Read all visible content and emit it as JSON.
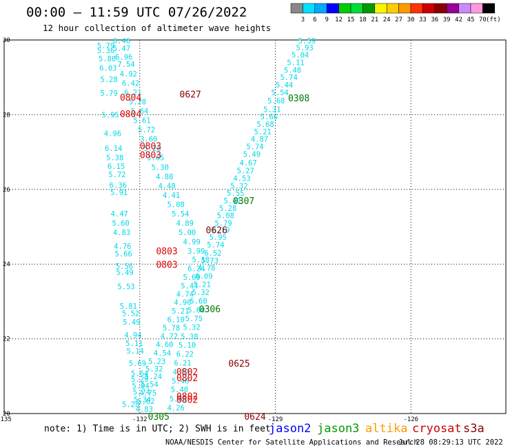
{
  "header": {
    "time_title": "00:00 – 11:59 UTC 07/26/2022",
    "subtitle": "12 hour collection of altimeter wave heights"
  },
  "colorbar": {
    "labels": [
      "3",
      "6",
      "9",
      "12",
      "15",
      "18",
      "21",
      "24",
      "27",
      "30",
      "33",
      "36",
      "39",
      "42",
      "45",
      "70"
    ],
    "unit": "(ft)",
    "colors": [
      "#888888",
      "#00e0ff",
      "#00a8ff",
      "#0000ff",
      "#00cc00",
      "#00dd33",
      "#009900",
      "#f6f600",
      "#ffcc00",
      "#ff9900",
      "#ff3300",
      "#cc0000",
      "#880000",
      "#990099",
      "#cc88ff",
      "#ff99dd",
      "#000000"
    ]
  },
  "note": "note: 1) Time is in UTC; 2) SWH is in feet",
  "satellites": [
    {
      "name": "jason2",
      "color": "#0000ff"
    },
    {
      "name": "jason3",
      "color": "#009900"
    },
    {
      "name": "altika",
      "color": "#ff9900"
    },
    {
      "name": "cryosat",
      "color": "#cc0000"
    },
    {
      "name": "s3a",
      "color": "#880000"
    }
  ],
  "credit": "NOAA/NESDIS Center for Satellite Applications and Research",
  "generated": "Jul 28 08:29:13 UTC 2022",
  "chart_data": {
    "type": "scatter",
    "x_ticks": [
      "-135",
      "-132",
      "-129",
      "-126",
      "-123",
      "-120"
    ],
    "y_ticks": [
      "20",
      "22",
      "24",
      "26",
      "28",
      "30"
    ],
    "xlim": [
      -135,
      -123.9
    ],
    "ylim": [
      20,
      30
    ],
    "grid": true,
    "value_color": "#00d8e8",
    "wave_heights": [
      {
        "lon": -128.3,
        "lat": 29.98,
        "v": "5.59"
      },
      {
        "lon": -128.35,
        "lat": 29.8,
        "v": "5.93"
      },
      {
        "lon": -128.45,
        "lat": 29.6,
        "v": "5.04"
      },
      {
        "lon": -128.55,
        "lat": 29.4,
        "v": "5.11"
      },
      {
        "lon": -128.62,
        "lat": 29.2,
        "v": "5.48"
      },
      {
        "lon": -128.7,
        "lat": 29.0,
        "v": "5.74"
      },
      {
        "lon": -128.8,
        "lat": 28.8,
        "v": "5.44"
      },
      {
        "lon": -128.9,
        "lat": 28.6,
        "v": "5.54"
      },
      {
        "lon": -128.98,
        "lat": 28.38,
        "v": "5.68"
      },
      {
        "lon": -129.07,
        "lat": 28.15,
        "v": "5.31"
      },
      {
        "lon": -129.14,
        "lat": 27.95,
        "v": "5.66"
      },
      {
        "lon": -129.22,
        "lat": 27.75,
        "v": "5.68"
      },
      {
        "lon": -129.28,
        "lat": 27.55,
        "v": "5.21"
      },
      {
        "lon": -129.35,
        "lat": 27.35,
        "v": "4.87"
      },
      {
        "lon": -129.45,
        "lat": 27.15,
        "v": "5.74"
      },
      {
        "lon": -129.52,
        "lat": 26.95,
        "v": "5.49"
      },
      {
        "lon": -129.6,
        "lat": 26.72,
        "v": "4.67"
      },
      {
        "lon": -129.66,
        "lat": 26.5,
        "v": "5.27"
      },
      {
        "lon": -129.74,
        "lat": 26.3,
        "v": "4.53"
      },
      {
        "lon": -129.8,
        "lat": 26.1,
        "v": "5.32"
      },
      {
        "lon": -129.88,
        "lat": 25.9,
        "v": "5.55"
      },
      {
        "lon": -129.95,
        "lat": 25.7,
        "v": "5.41"
      },
      {
        "lon": -130.05,
        "lat": 25.5,
        "v": "5.28"
      },
      {
        "lon": -130.1,
        "lat": 25.3,
        "v": "5.08"
      },
      {
        "lon": -130.15,
        "lat": 25.1,
        "v": "5.79"
      },
      {
        "lon": -130.2,
        "lat": 24.92,
        "v": "6.19"
      },
      {
        "lon": -130.27,
        "lat": 24.72,
        "v": "5.95"
      },
      {
        "lon": -130.32,
        "lat": 24.52,
        "v": "5.74"
      },
      {
        "lon": -130.38,
        "lat": 24.3,
        "v": "6.52"
      },
      {
        "lon": -130.45,
        "lat": 24.1,
        "v": "5.73"
      },
      {
        "lon": -130.52,
        "lat": 23.9,
        "v": "4.78"
      },
      {
        "lon": -130.58,
        "lat": 23.68,
        "v": "6.09"
      },
      {
        "lon": -130.62,
        "lat": 23.46,
        "v": "5.21"
      },
      {
        "lon": -130.65,
        "lat": 23.25,
        "v": "5.32"
      },
      {
        "lon": -130.7,
        "lat": 23.02,
        "v": "5.60"
      },
      {
        "lon": -130.75,
        "lat": 22.78,
        "v": "5.60"
      },
      {
        "lon": -130.8,
        "lat": 22.55,
        "v": "5.75"
      },
      {
        "lon": -130.85,
        "lat": 22.32,
        "v": "5.32"
      },
      {
        "lon": -130.9,
        "lat": 22.07,
        "v": "5.38"
      },
      {
        "lon": -130.95,
        "lat": 21.84,
        "v": "5.10"
      },
      {
        "lon": -131.0,
        "lat": 21.6,
        "v": "6.22"
      },
      {
        "lon": -131.05,
        "lat": 21.36,
        "v": "6.21"
      },
      {
        "lon": -131.08,
        "lat": 21.12,
        "v": "4.53"
      },
      {
        "lon": -131.1,
        "lat": 20.88,
        "v": "5.46"
      },
      {
        "lon": -131.12,
        "lat": 20.65,
        "v": "5.40"
      },
      {
        "lon": -131.15,
        "lat": 20.4,
        "v": "5.66"
      },
      {
        "lon": -131.2,
        "lat": 20.16,
        "v": "4.26"
      },
      {
        "lon": -132.4,
        "lat": 29.98,
        "v": "6.46"
      },
      {
        "lon": -132.4,
        "lat": 29.78,
        "v": "5.47"
      },
      {
        "lon": -132.35,
        "lat": 29.55,
        "v": "6.96"
      },
      {
        "lon": -132.3,
        "lat": 29.35,
        "v": "7.54"
      },
      {
        "lon": -132.25,
        "lat": 29.1,
        "v": "4.92"
      },
      {
        "lon": -132.2,
        "lat": 28.85,
        "v": "6.42"
      },
      {
        "lon": -132.15,
        "lat": 28.6,
        "v": "6.21"
      },
      {
        "lon": -132.05,
        "lat": 28.35,
        "v": "5.28"
      },
      {
        "lon": -132.0,
        "lat": 28.1,
        "v": "5.64"
      },
      {
        "lon": -131.95,
        "lat": 27.85,
        "v": "5.61"
      },
      {
        "lon": -131.85,
        "lat": 27.6,
        "v": "5.72"
      },
      {
        "lon": -131.8,
        "lat": 27.35,
        "v": "3.60"
      },
      {
        "lon": -131.72,
        "lat": 27.1,
        "v": "5.26"
      },
      {
        "lon": -131.65,
        "lat": 26.85,
        "v": "3.65"
      },
      {
        "lon": -131.55,
        "lat": 26.6,
        "v": "5.30"
      },
      {
        "lon": -131.45,
        "lat": 26.35,
        "v": "4.88"
      },
      {
        "lon": -131.4,
        "lat": 26.1,
        "v": "4.48"
      },
      {
        "lon": -131.3,
        "lat": 25.85,
        "v": "4.41"
      },
      {
        "lon": -131.2,
        "lat": 25.6,
        "v": "5.08"
      },
      {
        "lon": -131.1,
        "lat": 25.35,
        "v": "5.54"
      },
      {
        "lon": -131.0,
        "lat": 25.1,
        "v": "4.89"
      },
      {
        "lon": -130.95,
        "lat": 24.85,
        "v": "5.00"
      },
      {
        "lon": -130.85,
        "lat": 24.6,
        "v": "4.99"
      },
      {
        "lon": -130.75,
        "lat": 24.35,
        "v": "3.99"
      },
      {
        "lon": -130.65,
        "lat": 24.12,
        "v": "5.38"
      },
      {
        "lon": -130.75,
        "lat": 23.88,
        "v": "6.24"
      },
      {
        "lon": -130.85,
        "lat": 23.65,
        "v": "5.69"
      },
      {
        "lon": -130.9,
        "lat": 23.42,
        "v": "5.44"
      },
      {
        "lon": -131.0,
        "lat": 23.2,
        "v": "4.74"
      },
      {
        "lon": -131.05,
        "lat": 22.98,
        "v": "4.90"
      },
      {
        "lon": -131.1,
        "lat": 22.75,
        "v": "5.21"
      },
      {
        "lon": -131.2,
        "lat": 22.52,
        "v": "6.10"
      },
      {
        "lon": -131.3,
        "lat": 22.3,
        "v": "5.78"
      },
      {
        "lon": -131.35,
        "lat": 22.08,
        "v": "4.72"
      },
      {
        "lon": -131.45,
        "lat": 21.85,
        "v": "4.60"
      },
      {
        "lon": -131.5,
        "lat": 21.62,
        "v": "4.54"
      },
      {
        "lon": -131.62,
        "lat": 21.4,
        "v": "5.23"
      },
      {
        "lon": -131.68,
        "lat": 21.2,
        "v": "5.32"
      },
      {
        "lon": -131.7,
        "lat": 21.0,
        "v": "5.24"
      },
      {
        "lon": -131.78,
        "lat": 20.78,
        "v": "5.54"
      },
      {
        "lon": -131.82,
        "lat": 20.55,
        "v": "4.75"
      },
      {
        "lon": -131.86,
        "lat": 20.33,
        "v": "5.62"
      },
      {
        "lon": -131.9,
        "lat": 20.12,
        "v": "4.83"
      },
      {
        "lon": -132.75,
        "lat": 29.85,
        "v": "5.79"
      },
      {
        "lon": -132.75,
        "lat": 29.72,
        "v": "5.36"
      },
      {
        "lon": -132.72,
        "lat": 29.5,
        "v": "5.80"
      },
      {
        "lon": -132.7,
        "lat": 29.25,
        "v": "6.03"
      },
      {
        "lon": -132.68,
        "lat": 28.95,
        "v": "5.28"
      },
      {
        "lon": -132.68,
        "lat": 28.58,
        "v": "5.79"
      },
      {
        "lon": -132.65,
        "lat": 28.0,
        "v": "5.95"
      },
      {
        "lon": -132.6,
        "lat": 27.5,
        "v": "4.96"
      },
      {
        "lon": -132.58,
        "lat": 27.1,
        "v": "6.14"
      },
      {
        "lon": -132.55,
        "lat": 26.85,
        "v": "5.38"
      },
      {
        "lon": -132.52,
        "lat": 26.62,
        "v": "6.15"
      },
      {
        "lon": -132.5,
        "lat": 26.4,
        "v": "5.72"
      },
      {
        "lon": -132.48,
        "lat": 26.12,
        "v": "6.36"
      },
      {
        "lon": -132.46,
        "lat": 25.92,
        "v": "5.91"
      },
      {
        "lon": -132.45,
        "lat": 25.35,
        "v": "4.47"
      },
      {
        "lon": -132.42,
        "lat": 25.1,
        "v": "5.60"
      },
      {
        "lon": -132.4,
        "lat": 24.85,
        "v": "4.83"
      },
      {
        "lon": -132.38,
        "lat": 24.48,
        "v": "4.76"
      },
      {
        "lon": -132.36,
        "lat": 24.28,
        "v": "5.66"
      },
      {
        "lon": -132.34,
        "lat": 23.95,
        "v": "5.56"
      },
      {
        "lon": -132.33,
        "lat": 23.78,
        "v": "5.49"
      },
      {
        "lon": -132.3,
        "lat": 23.4,
        "v": "5.53"
      },
      {
        "lon": -132.25,
        "lat": 22.88,
        "v": "5.81"
      },
      {
        "lon": -132.2,
        "lat": 22.68,
        "v": "5.52"
      },
      {
        "lon": -132.18,
        "lat": 22.45,
        "v": "5.49"
      },
      {
        "lon": -132.15,
        "lat": 22.1,
        "v": "4.94"
      },
      {
        "lon": -132.12,
        "lat": 21.88,
        "v": "5.11"
      },
      {
        "lon": -132.1,
        "lat": 21.68,
        "v": "5.14"
      },
      {
        "lon": -132.05,
        "lat": 21.35,
        "v": "5.69"
      },
      {
        "lon": -132.0,
        "lat": 21.08,
        "v": "5.64"
      },
      {
        "lon": -132.0,
        "lat": 20.92,
        "v": "5.29"
      },
      {
        "lon": -131.98,
        "lat": 20.75,
        "v": "5.64"
      },
      {
        "lon": -131.96,
        "lat": 20.58,
        "v": "5.74"
      },
      {
        "lon": -131.94,
        "lat": 20.38,
        "v": "5.34"
      },
      {
        "lon": -132.2,
        "lat": 20.25,
        "v": "5.28"
      }
    ],
    "pass_times": [
      {
        "lon": -128.48,
        "lat": 28.45,
        "t": "0308",
        "color": "#007700"
      },
      {
        "lon": -129.7,
        "lat": 25.7,
        "t": "0307",
        "color": "#007700"
      },
      {
        "lon": -130.45,
        "lat": 22.8,
        "t": "0306",
        "color": "#007700"
      },
      {
        "lon": -131.58,
        "lat": 19.93,
        "t": "0305",
        "color": "#007700"
      },
      {
        "lon": -130.88,
        "lat": 28.55,
        "t": "0627",
        "color": "#880000"
      },
      {
        "lon": -130.3,
        "lat": 24.92,
        "t": "0626",
        "color": "#880000"
      },
      {
        "lon": -129.8,
        "lat": 21.35,
        "t": "0625",
        "color": "#880000"
      },
      {
        "lon": -129.45,
        "lat": 19.93,
        "t": "0624",
        "color": "#880000"
      },
      {
        "lon": -132.2,
        "lat": 28.47,
        "t": "0804",
        "color": "#dd0000"
      },
      {
        "lon": -132.2,
        "lat": 28.03,
        "t": "0804",
        "color": "#dd0000"
      },
      {
        "lon": -131.76,
        "lat": 27.17,
        "t": "0803",
        "color": "#dd0000"
      },
      {
        "lon": -131.76,
        "lat": 26.93,
        "t": "0803",
        "color": "#dd0000"
      },
      {
        "lon": -131.4,
        "lat": 24.35,
        "t": "0803",
        "color": "#dd0000"
      },
      {
        "lon": -131.4,
        "lat": 23.99,
        "t": "0803",
        "color": "#dd0000"
      },
      {
        "lon": -130.95,
        "lat": 21.13,
        "t": "0802",
        "color": "#dd0000"
      },
      {
        "lon": -130.95,
        "lat": 20.96,
        "t": "0802",
        "color": "#dd0000"
      },
      {
        "lon": -130.95,
        "lat": 20.47,
        "t": "0802",
        "color": "#dd0000"
      },
      {
        "lon": -130.95,
        "lat": 20.38,
        "t": "0802",
        "color": "#dd0000"
      }
    ]
  }
}
